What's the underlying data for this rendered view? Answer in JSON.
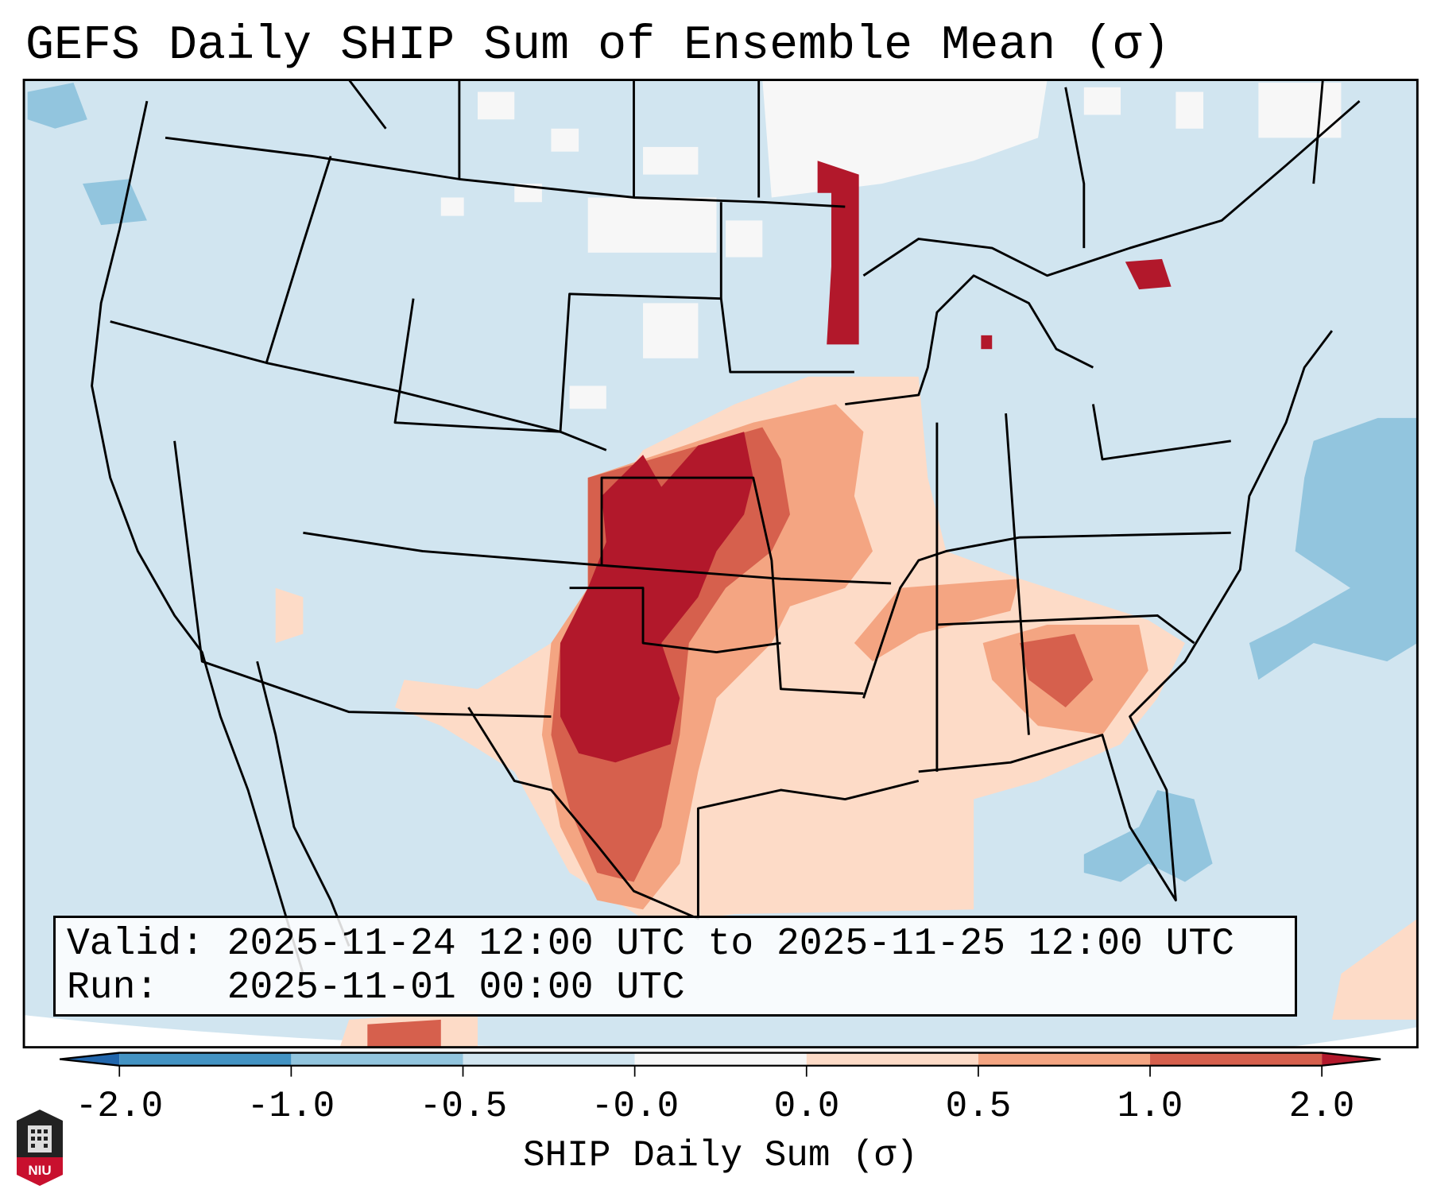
{
  "title": "GEFS Daily SHIP Sum of Ensemble Mean (σ)",
  "info": {
    "valid_line": "Valid: 2025-11-24 12:00 UTC to 2025-11-25 12:00 UTC",
    "run_line": "Run:   2025-11-01 00:00 UTC"
  },
  "colorbar": {
    "label": "SHIP Daily Sum (σ)",
    "ticks": [
      "-2.0",
      "-1.0",
      "-0.5",
      "-0.0",
      "0.0",
      "0.5",
      "1.0",
      "2.0"
    ],
    "under_color": "#2166ac",
    "over_color": "#b2182b",
    "colors": [
      "#4393c3",
      "#92c5de",
      "#d1e5f0",
      "#f7f7f7",
      "#fddbc7",
      "#f4a582",
      "#d6604d"
    ]
  },
  "logo": {
    "text": "NIU"
  }
}
